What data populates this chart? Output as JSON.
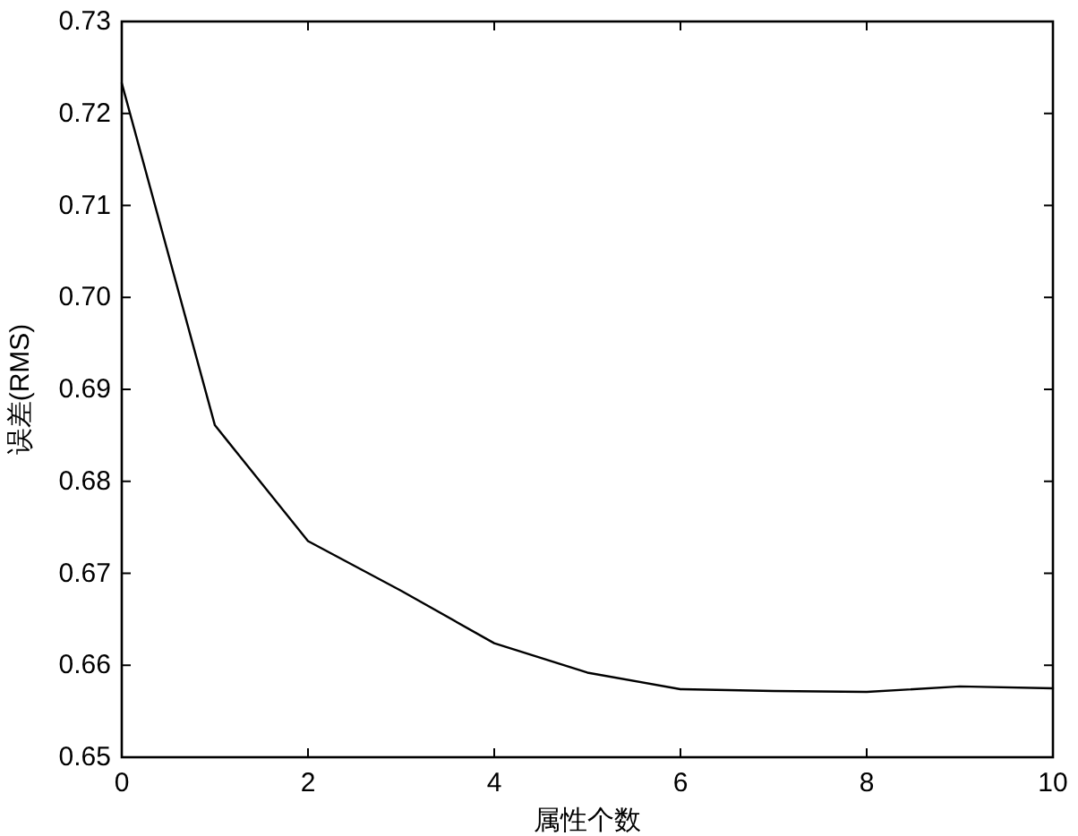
{
  "chart_data": {
    "type": "line",
    "xlabel": "属性个数",
    "ylabel": "误差(RMS)",
    "x": [
      0,
      1,
      2,
      3,
      4,
      5,
      6,
      7,
      8,
      9,
      10
    ],
    "series": [
      {
        "color": "#000000",
        "values": [
          0.7233,
          0.6861,
          0.6735,
          0.6681,
          0.6624,
          0.6592,
          0.6574,
          0.6572,
          0.6571,
          0.6577,
          0.6575
        ]
      }
    ],
    "xlim": [
      0,
      10
    ],
    "ylim": [
      0.65,
      0.73
    ],
    "xticks": [
      0,
      2,
      4,
      6,
      8,
      10
    ],
    "yticks": [
      0.65,
      0.66,
      0.67,
      0.68,
      0.69,
      {
        "value": 0.7,
        "label": "0.70"
      },
      0.71,
      0.72,
      0.73
    ]
  }
}
